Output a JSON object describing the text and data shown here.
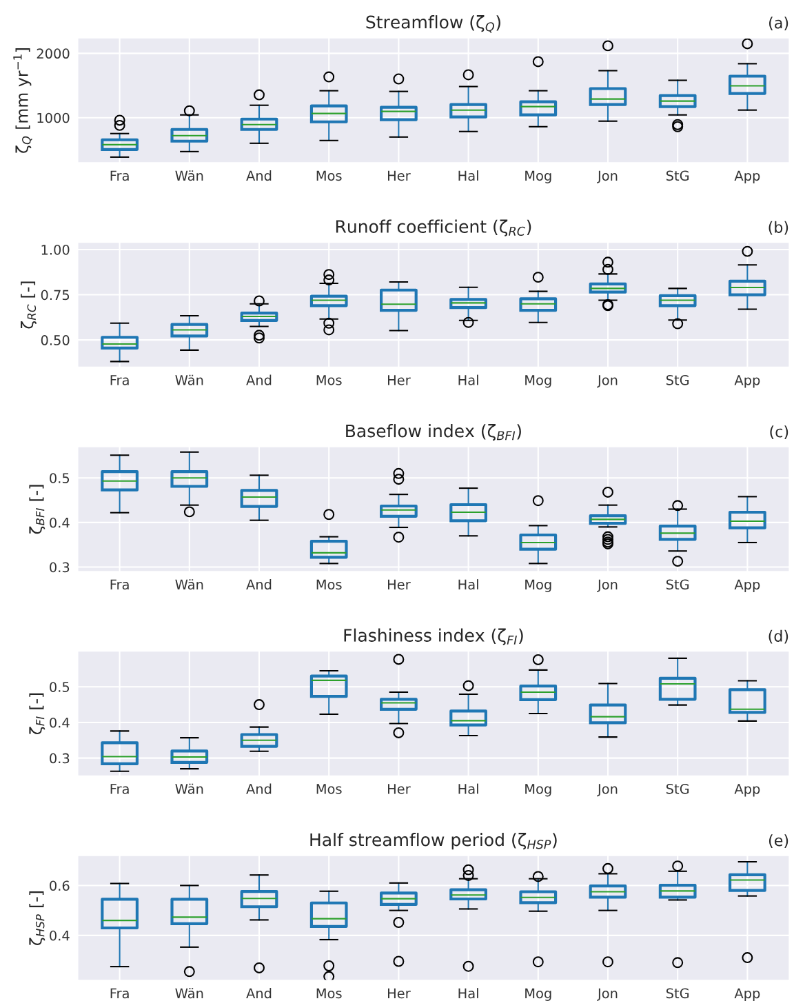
{
  "chart_data": [
    {
      "type": "box",
      "title": "Streamflow (ζ$_{Q}$)",
      "ylabel": "ζ$_{Q}$ [mm yr$^{−1}$]",
      "annotations": [
        "(a)"
      ],
      "grid": true,
      "categories": [
        "Fra",
        "Wän",
        "And",
        "Mos",
        "Her",
        "Hal",
        "Mog",
        "Jon",
        "StG",
        "App"
      ],
      "ylim": [
        300,
        2240
      ],
      "yticks": [
        1000,
        2000
      ],
      "series": [
        {
          "color": "#1f77b4",
          "boxes": [
            {
              "low": 387,
              "q1": 505,
              "median": 580,
              "q3": 656,
              "high": 753,
              "outliers": [
                880,
                960
              ]
            },
            {
              "low": 473,
              "q1": 635,
              "median": 720,
              "q3": 817,
              "high": 1043,
              "outliers": [
                1107
              ]
            },
            {
              "low": 602,
              "q1": 817,
              "median": 893,
              "q3": 978,
              "high": 1193,
              "outliers": [
                1355
              ]
            },
            {
              "low": 645,
              "q1": 935,
              "median": 1065,
              "q3": 1183,
              "high": 1419,
              "outliers": [
                1634
              ]
            },
            {
              "low": 699,
              "q1": 968,
              "median": 1097,
              "q3": 1161,
              "high": 1408,
              "outliers": [
                1602
              ]
            },
            {
              "low": 785,
              "q1": 1011,
              "median": 1118,
              "q3": 1204,
              "high": 1484,
              "outliers": [
                1667
              ]
            },
            {
              "low": 860,
              "q1": 1043,
              "median": 1172,
              "q3": 1247,
              "high": 1419,
              "outliers": [
                1871
              ]
            },
            {
              "low": 946,
              "q1": 1204,
              "median": 1290,
              "q3": 1452,
              "high": 1731,
              "outliers": [
                2118
              ]
            },
            {
              "low": 1043,
              "q1": 1172,
              "median": 1258,
              "q3": 1344,
              "high": 1581,
              "outliers": [
                892,
                860
              ]
            },
            {
              "low": 1118,
              "q1": 1376,
              "median": 1495,
              "q3": 1645,
              "high": 1839,
              "outliers": [
                2150
              ]
            }
          ]
        }
      ]
    },
    {
      "type": "box",
      "title": "Runoff coefficient (ζ$_{RC}$)",
      "ylabel": "ζ$_{RC}$ [-]",
      "annotations": [
        "(b)"
      ],
      "grid": true,
      "categories": [
        "Fra",
        "Wän",
        "And",
        "Mos",
        "Her",
        "Hal",
        "Mog",
        "Jon",
        "StG",
        "App"
      ],
      "ylim": [
        0.35,
        1.04
      ],
      "yticks": [
        {
          "value": 0.5,
          "label": "0.50"
        },
        {
          "value": 0.75,
          "label": "0.75"
        },
        {
          "value": 1.0,
          "label": "1.00"
        }
      ],
      "series": [
        {
          "color": "#1f77b4",
          "boxes": [
            {
              "low": 0.381,
              "q1": 0.455,
              "median": 0.478,
              "q3": 0.515,
              "high": 0.593
            },
            {
              "low": 0.444,
              "q1": 0.522,
              "median": 0.556,
              "q3": 0.586,
              "high": 0.634
            },
            {
              "low": 0.575,
              "q1": 0.608,
              "median": 0.63,
              "q3": 0.649,
              "high": 0.7,
              "outliers": [
                0.716,
                0.526,
                0.511
              ]
            },
            {
              "low": 0.616,
              "q1": 0.69,
              "median": 0.72,
              "q3": 0.742,
              "high": 0.813,
              "outliers": [
                0.862,
                0.832,
                0.593,
                0.556
              ]
            },
            {
              "low": 0.552,
              "q1": 0.664,
              "median": 0.698,
              "q3": 0.776,
              "high": 0.821
            },
            {
              "low": 0.608,
              "q1": 0.679,
              "median": 0.705,
              "q3": 0.724,
              "high": 0.791,
              "outliers": [
                0.597
              ]
            },
            {
              "low": 0.597,
              "q1": 0.664,
              "median": 0.7,
              "q3": 0.728,
              "high": 0.769,
              "outliers": [
                0.847
              ]
            },
            {
              "low": 0.72,
              "q1": 0.765,
              "median": 0.785,
              "q3": 0.81,
              "high": 0.865,
              "outliers": [
                0.93,
                0.89,
                0.695,
                0.69
              ]
            },
            {
              "low": 0.61,
              "q1": 0.69,
              "median": 0.72,
              "q3": 0.745,
              "high": 0.785,
              "outliers": [
                0.59
              ]
            },
            {
              "low": 0.67,
              "q1": 0.75,
              "median": 0.79,
              "q3": 0.825,
              "high": 0.915,
              "outliers": [
                0.99
              ]
            }
          ]
        }
      ]
    },
    {
      "type": "box",
      "title": "Baseflow index (ζ$_{BFI}$)",
      "ylabel": "ζ$_{BFI}$ [-]",
      "annotations": [
        "(c)"
      ],
      "grid": true,
      "categories": [
        "Fra",
        "Wän",
        "And",
        "Mos",
        "Her",
        "Hal",
        "Mog",
        "Jon",
        "StG",
        "App"
      ],
      "ylim": [
        0.29,
        0.57
      ],
      "yticks": [
        0.3,
        0.4,
        0.5
      ],
      "series": [
        {
          "color": "#1f77b4",
          "boxes": [
            {
              "low": 0.422,
              "q1": 0.473,
              "median": 0.493,
              "q3": 0.514,
              "high": 0.551
            },
            {
              "low": 0.439,
              "q1": 0.481,
              "median": 0.5,
              "q3": 0.514,
              "high": 0.558,
              "outliers": [
                0.424
              ]
            },
            {
              "low": 0.405,
              "q1": 0.436,
              "median": 0.457,
              "q3": 0.472,
              "high": 0.506
            },
            {
              "low": 0.308,
              "q1": 0.322,
              "median": 0.332,
              "q3": 0.358,
              "high": 0.368,
              "outliers": [
                0.418
              ]
            },
            {
              "low": 0.389,
              "q1": 0.414,
              "median": 0.428,
              "q3": 0.437,
              "high": 0.463,
              "outliers": [
                0.51,
                0.497,
                0.367
              ]
            },
            {
              "low": 0.37,
              "q1": 0.404,
              "median": 0.423,
              "q3": 0.44,
              "high": 0.477
            },
            {
              "low": 0.308,
              "q1": 0.34,
              "median": 0.355,
              "q3": 0.372,
              "high": 0.393,
              "outliers": [
                0.449
              ]
            },
            {
              "low": 0.39,
              "q1": 0.398,
              "median": 0.407,
              "q3": 0.415,
              "high": 0.439,
              "outliers": [
                0.468,
                0.368,
                0.362,
                0.356,
                0.352
              ]
            },
            {
              "low": 0.336,
              "q1": 0.362,
              "median": 0.376,
              "q3": 0.392,
              "high": 0.43,
              "outliers": [
                0.438,
                0.313
              ]
            },
            {
              "low": 0.355,
              "q1": 0.388,
              "median": 0.403,
              "q3": 0.423,
              "high": 0.458
            }
          ]
        }
      ]
    },
    {
      "type": "box",
      "title": "Flashiness index (ζ$_{FI}$)",
      "ylabel": "ζ$_{FI}$ [-]",
      "annotations": [
        "(d)"
      ],
      "grid": true,
      "categories": [
        "Fra",
        "Wän",
        "And",
        "Mos",
        "Her",
        "Hal",
        "Mog",
        "Jon",
        "StG",
        "App"
      ],
      "ylim": [
        0.25,
        0.6
      ],
      "yticks": [
        0.3,
        0.4,
        0.5
      ],
      "series": [
        {
          "color": "#1f77b4",
          "boxes": [
            {
              "low": 0.263,
              "q1": 0.284,
              "median": 0.304,
              "q3": 0.343,
              "high": 0.376
            },
            {
              "low": 0.27,
              "q1": 0.288,
              "median": 0.303,
              "q3": 0.32,
              "high": 0.357
            },
            {
              "low": 0.319,
              "q1": 0.333,
              "median": 0.35,
              "q3": 0.366,
              "high": 0.387,
              "outliers": [
                0.45
              ]
            },
            {
              "low": 0.423,
              "q1": 0.473,
              "median": 0.518,
              "q3": 0.53,
              "high": 0.545
            },
            {
              "low": 0.397,
              "q1": 0.437,
              "median": 0.455,
              "q3": 0.465,
              "high": 0.485,
              "outliers": [
                0.577,
                0.371
              ]
            },
            {
              "low": 0.363,
              "q1": 0.393,
              "median": 0.405,
              "q3": 0.432,
              "high": 0.479,
              "outliers": [
                0.503
              ]
            },
            {
              "low": 0.425,
              "q1": 0.464,
              "median": 0.485,
              "q3": 0.502,
              "high": 0.547,
              "outliers": [
                0.576
              ]
            },
            {
              "low": 0.359,
              "q1": 0.399,
              "median": 0.416,
              "q3": 0.449,
              "high": 0.509
            },
            {
              "low": 0.449,
              "q1": 0.465,
              "median": 0.508,
              "q3": 0.524,
              "high": 0.58
            },
            {
              "low": 0.404,
              "q1": 0.428,
              "median": 0.437,
              "q3": 0.492,
              "high": 0.517
            }
          ]
        }
      ]
    },
    {
      "type": "box",
      "title": "Half streamflow period (ζ$_{HSP}$)",
      "ylabel": "ζ$_{HSP}$ [-]",
      "annotations": [
        "(e)"
      ],
      "grid": true,
      "categories": [
        "Fra",
        "Wän",
        "And",
        "Mos",
        "Her",
        "Hal",
        "Mog",
        "Jon",
        "StG",
        "App"
      ],
      "ylim": [
        0.22,
        0.72
      ],
      "yticks": [
        0.4,
        0.6
      ],
      "series": [
        {
          "color": "#1f77b4",
          "boxes": [
            {
              "low": 0.275,
              "q1": 0.43,
              "median": 0.46,
              "q3": 0.545,
              "high": 0.608
            },
            {
              "low": 0.353,
              "q1": 0.447,
              "median": 0.473,
              "q3": 0.545,
              "high": 0.6,
              "outliers": [
                0.255
              ]
            },
            {
              "low": 0.462,
              "q1": 0.515,
              "median": 0.548,
              "q3": 0.576,
              "high": 0.642,
              "outliers": [
                0.27
              ]
            },
            {
              "low": 0.383,
              "q1": 0.436,
              "median": 0.467,
              "q3": 0.53,
              "high": 0.577,
              "outliers": [
                0.278,
                0.235
              ]
            },
            {
              "low": 0.5,
              "q1": 0.524,
              "median": 0.547,
              "q3": 0.57,
              "high": 0.61,
              "outliers": [
                0.452,
                0.296
              ]
            },
            {
              "low": 0.506,
              "q1": 0.546,
              "median": 0.562,
              "q3": 0.583,
              "high": 0.627,
              "outliers": [
                0.663,
                0.64,
                0.276
              ]
            },
            {
              "low": 0.497,
              "q1": 0.531,
              "median": 0.552,
              "q3": 0.575,
              "high": 0.627,
              "outliers": [
                0.636,
                0.294
              ]
            },
            {
              "low": 0.5,
              "q1": 0.553,
              "median": 0.575,
              "q3": 0.598,
              "high": 0.647,
              "outliers": [
                0.668,
                0.294
              ]
            },
            {
              "low": 0.542,
              "q1": 0.553,
              "median": 0.578,
              "q3": 0.601,
              "high": 0.657,
              "outliers": [
                0.678,
                0.291
              ]
            },
            {
              "low": 0.558,
              "q1": 0.58,
              "median": 0.622,
              "q3": 0.643,
              "high": 0.695,
              "outliers": [
                0.311
              ]
            }
          ]
        }
      ]
    }
  ]
}
